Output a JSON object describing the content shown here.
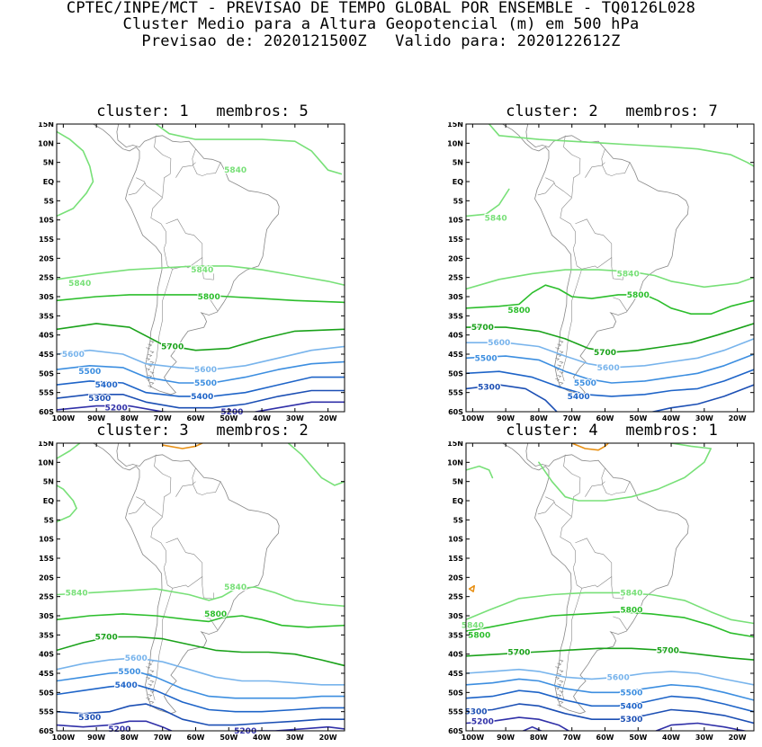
{
  "header": {
    "line1": "CPTEC/INPE/MCT - PREVISAO DE TEMPO GLOBAL POR ENSEMBLE - TQ0126L028",
    "line2": "Cluster Medio para a Altura Geopotencial (m) em 500 hPa",
    "line3": "Previsao de: 2020121500Z   Valido para: 2020122612Z"
  },
  "axes": {
    "lat_labels": [
      "15N",
      "10N",
      "5N",
      "EQ",
      "5S",
      "10S",
      "15S",
      "20S",
      "25S",
      "30S",
      "35S",
      "40S",
      "45S",
      "50S",
      "55S",
      "60S"
    ],
    "lon_labels": [
      "100W",
      "90W",
      "80W",
      "70W",
      "60W",
      "50W",
      "40W",
      "30W",
      "20W"
    ]
  },
  "colors": {
    "c5200": "#3030a8",
    "c5300": "#1c4fb4",
    "c5400": "#1e64c8",
    "c5500": "#3c8ee0",
    "c5600": "#78b4ec",
    "c5700": "#1aa21a",
    "c5800": "#2cbe2c",
    "c5840": "#78e078",
    "c5900": "#e89014",
    "coast": "#888888"
  },
  "panels": [
    {
      "title": "cluster: 1   membros: 5",
      "labels": [
        {
          "text": "5840",
          "lon": -48,
          "lat": 3,
          "level": "c5840"
        },
        {
          "text": "5840",
          "lon": -95,
          "lat": -26.5,
          "level": "c5840"
        },
        {
          "text": "5840",
          "lon": -58,
          "lat": -23,
          "level": "c5840"
        },
        {
          "text": "5800",
          "lon": -56,
          "lat": -30,
          "level": "c5800"
        },
        {
          "text": "5700",
          "lon": -67,
          "lat": -43,
          "level": "c5700"
        },
        {
          "text": "5600",
          "lon": -97,
          "lat": -45,
          "level": "c5600"
        },
        {
          "text": "5600",
          "lon": -57,
          "lat": -49,
          "level": "c5600"
        },
        {
          "text": "5500",
          "lon": -92,
          "lat": -49.5,
          "level": "c5500"
        },
        {
          "text": "5500",
          "lon": -57,
          "lat": -52.5,
          "level": "c5500"
        },
        {
          "text": "5400",
          "lon": -87,
          "lat": -53,
          "level": "c5400"
        },
        {
          "text": "5400",
          "lon": -58,
          "lat": -56,
          "level": "c5400"
        },
        {
          "text": "5300",
          "lon": -89,
          "lat": -56.5,
          "level": "c5300"
        },
        {
          "text": "5200",
          "lon": -84,
          "lat": -59,
          "level": "c5200"
        },
        {
          "text": "5200",
          "lon": -49,
          "lat": -60,
          "level": "c5200"
        }
      ]
    },
    {
      "title": "cluster: 2   membros: 7",
      "labels": [
        {
          "text": "5840",
          "lon": -93,
          "lat": -9.5,
          "level": "c5840"
        },
        {
          "text": "5840",
          "lon": -53,
          "lat": -24,
          "level": "c5840"
        },
        {
          "text": "5800",
          "lon": -86,
          "lat": -33.5,
          "level": "c5800"
        },
        {
          "text": "5800",
          "lon": -50,
          "lat": -29.5,
          "level": "c5800"
        },
        {
          "text": "5700",
          "lon": -97,
          "lat": -38,
          "level": "c5700"
        },
        {
          "text": "5700",
          "lon": -60,
          "lat": -44.5,
          "level": "c5700"
        },
        {
          "text": "5600",
          "lon": -92,
          "lat": -42,
          "level": "c5600"
        },
        {
          "text": "5600",
          "lon": -59,
          "lat": -48.5,
          "level": "c5600"
        },
        {
          "text": "5500",
          "lon": -96,
          "lat": -46,
          "level": "c5500"
        },
        {
          "text": "5500",
          "lon": -66,
          "lat": -52.5,
          "level": "c5500"
        },
        {
          "text": "5400",
          "lon": -68,
          "lat": -56,
          "level": "c5400"
        },
        {
          "text": "5300",
          "lon": -95,
          "lat": -53.5,
          "level": "c5300"
        }
      ]
    },
    {
      "title": "cluster: 3   membros: 2",
      "labels": [
        {
          "text": "5840",
          "lon": -96,
          "lat": -24,
          "level": "c5840"
        },
        {
          "text": "5840",
          "lon": -48,
          "lat": -22.5,
          "level": "c5840"
        },
        {
          "text": "5800",
          "lon": -54,
          "lat": -29.5,
          "level": "c5800"
        },
        {
          "text": "5700",
          "lon": -87,
          "lat": -35.5,
          "level": "c5700"
        },
        {
          "text": "5600",
          "lon": -78,
          "lat": -41,
          "level": "c5600"
        },
        {
          "text": "5500",
          "lon": -80,
          "lat": -44.5,
          "level": "c5500"
        },
        {
          "text": "5400",
          "lon": -81,
          "lat": -48,
          "level": "c5400"
        },
        {
          "text": "5300",
          "lon": -92,
          "lat": -56.5,
          "level": "c5300"
        },
        {
          "text": "5200",
          "lon": -83,
          "lat": -59.5,
          "level": "c5200"
        },
        {
          "text": "5200",
          "lon": -45,
          "lat": -60,
          "level": "c5200"
        }
      ]
    },
    {
      "title": "cluster: 4   membros: 1",
      "labels": [
        {
          "text": "5840",
          "lon": -52,
          "lat": -24,
          "level": "c5840"
        },
        {
          "text": "5840",
          "lon": -100,
          "lat": -32.5,
          "level": "c5840"
        },
        {
          "text": "5800",
          "lon": -52,
          "lat": -28.5,
          "level": "c5800"
        },
        {
          "text": "5800",
          "lon": -98,
          "lat": -35,
          "level": "c5800"
        },
        {
          "text": "5700",
          "lon": -86,
          "lat": -39.5,
          "level": "c5700"
        },
        {
          "text": "5700",
          "lon": -41,
          "lat": -39,
          "level": "c5700"
        },
        {
          "text": "5600",
          "lon": -56,
          "lat": -46,
          "level": "c5600"
        },
        {
          "text": "5500",
          "lon": -52,
          "lat": -50,
          "level": "c5500"
        },
        {
          "text": "5400",
          "lon": -52,
          "lat": -53.5,
          "level": "c5400"
        },
        {
          "text": "5300",
          "lon": -99,
          "lat": -55,
          "level": "c5300"
        },
        {
          "text": "5300",
          "lon": -52,
          "lat": -57,
          "level": "c5300"
        },
        {
          "text": "5200",
          "lon": -97,
          "lat": -57.5,
          "level": "c5200"
        }
      ]
    }
  ]
}
